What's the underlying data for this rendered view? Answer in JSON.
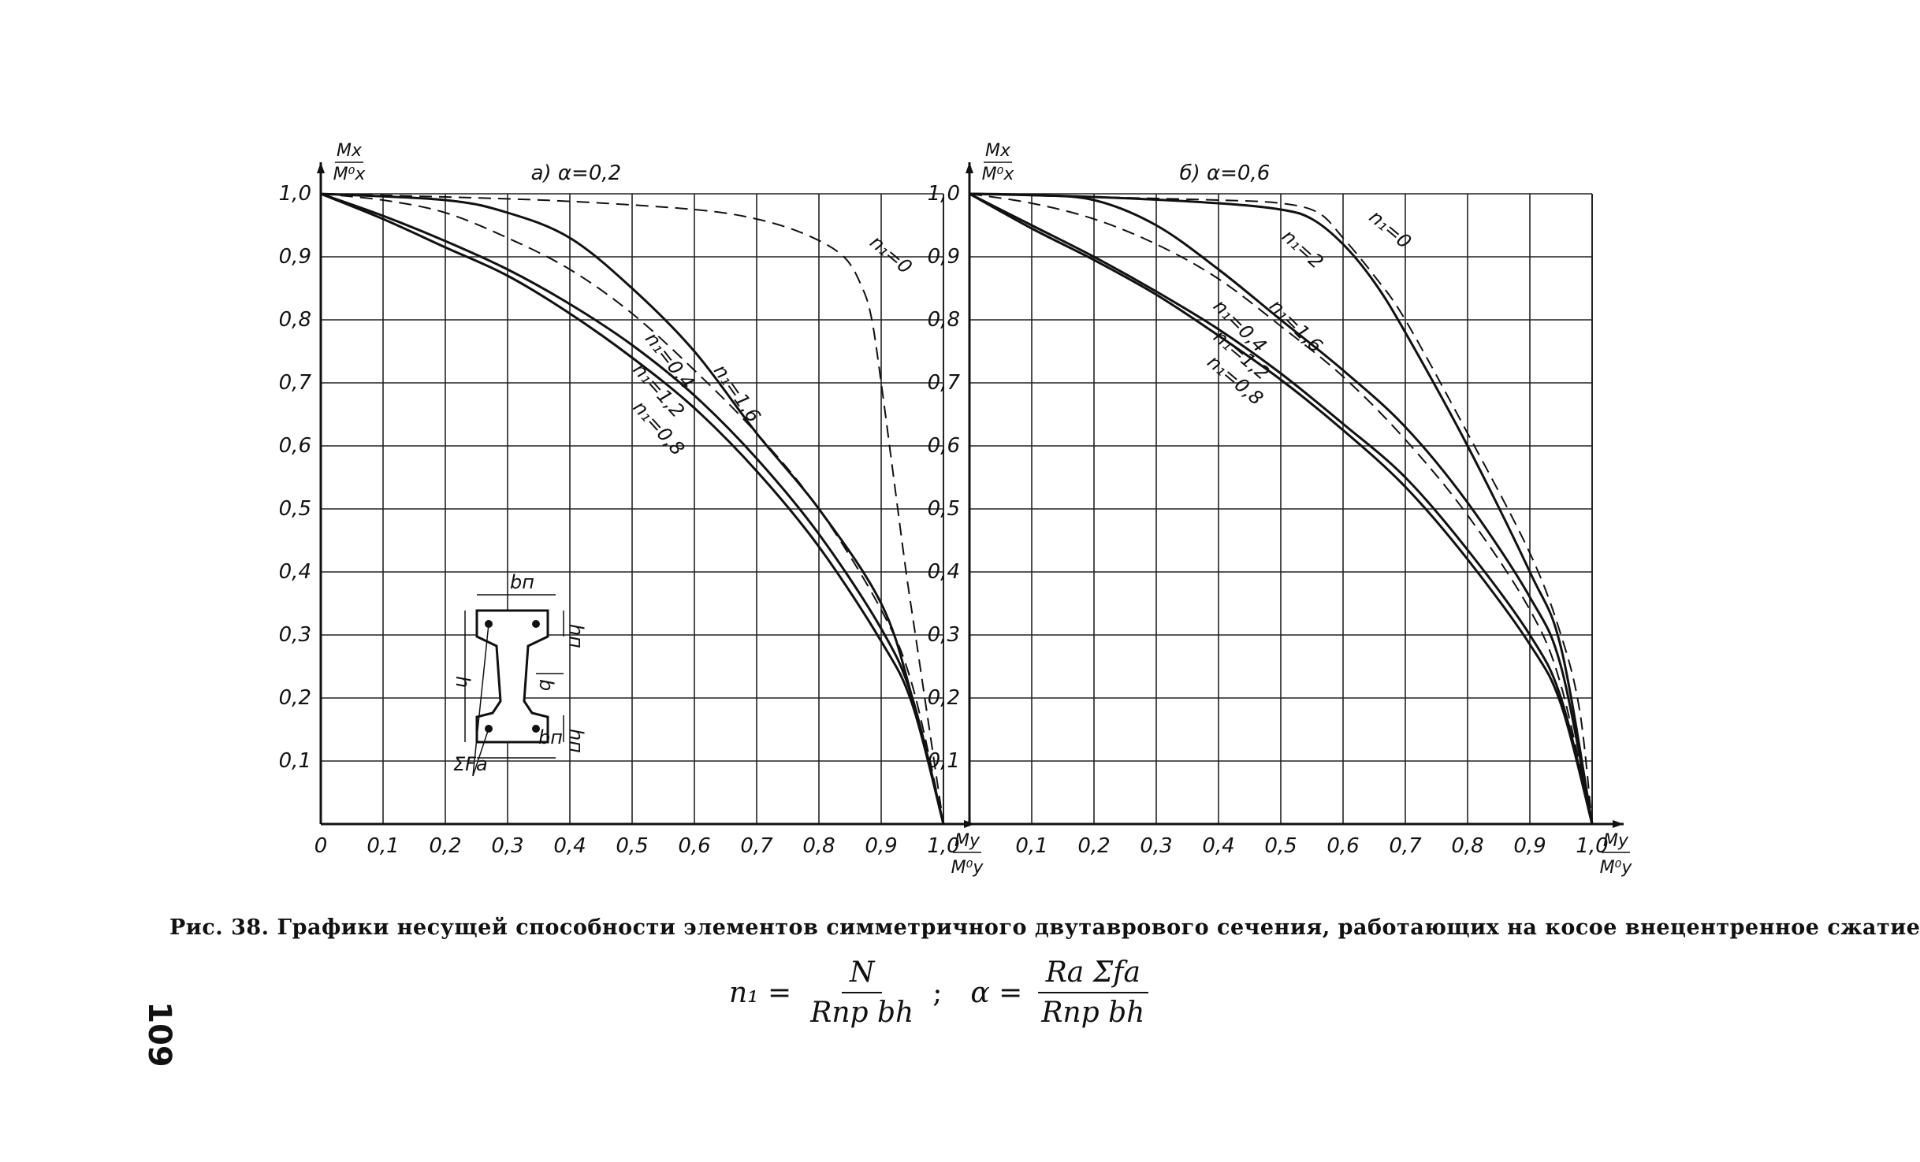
{
  "chart_data": [
    {
      "type": "line",
      "title": "а) α=0,2",
      "ylabel_num": "Mx",
      "ylabel_den": "M⁰x",
      "xlabel_num": "My",
      "xlabel_den": "M⁰y",
      "xlim": [
        0,
        1.0
      ],
      "ylim": [
        0,
        1.0
      ],
      "grid": true,
      "x_ticks": [
        "0",
        "0,1",
        "0,2",
        "0,3",
        "0,4",
        "0,5",
        "0,6",
        "0,7",
        "0,8",
        "0,9",
        "1,0"
      ],
      "y_ticks": [
        "0,1",
        "0,2",
        "0,3",
        "0,4",
        "0,5",
        "0,6",
        "0,7",
        "0,8",
        "0,9",
        "1,0"
      ],
      "series": [
        {
          "name": "n₁=0",
          "style": "dashed",
          "points": [
            [
              0,
              1
            ],
            [
              0.2,
              0.995
            ],
            [
              0.4,
              0.988
            ],
            [
              0.6,
              0.975
            ],
            [
              0.7,
              0.96
            ],
            [
              0.78,
              0.935
            ],
            [
              0.84,
              0.9
            ],
            [
              0.87,
              0.85
            ],
            [
              0.885,
              0.8
            ],
            [
              0.9,
              0.7
            ],
            [
              0.92,
              0.55
            ],
            [
              0.94,
              0.4
            ],
            [
              0.955,
              0.3
            ],
            [
              0.97,
              0.2
            ],
            [
              0.985,
              0.1
            ],
            [
              1.0,
              0
            ]
          ]
        },
        {
          "name": "n₁=1,6",
          "style": "solid",
          "points": [
            [
              0,
              1
            ],
            [
              0.2,
              0.99
            ],
            [
              0.3,
              0.97
            ],
            [
              0.4,
              0.93
            ],
            [
              0.5,
              0.85
            ],
            [
              0.6,
              0.75
            ],
            [
              0.7,
              0.62
            ],
            [
              0.8,
              0.5
            ],
            [
              0.9,
              0.35
            ],
            [
              0.95,
              0.2
            ],
            [
              1.0,
              0
            ]
          ]
        },
        {
          "name": "n₁=0,4",
          "style": "dashed",
          "points": [
            [
              0,
              1
            ],
            [
              0.1,
              0.99
            ],
            [
              0.2,
              0.97
            ],
            [
              0.3,
              0.93
            ],
            [
              0.4,
              0.88
            ],
            [
              0.5,
              0.81
            ],
            [
              0.6,
              0.72
            ],
            [
              0.7,
              0.62
            ],
            [
              0.8,
              0.5
            ],
            [
              0.9,
              0.34
            ],
            [
              0.95,
              0.22
            ],
            [
              1.0,
              0
            ]
          ]
        },
        {
          "name": "n₁=1,2",
          "style": "solid",
          "points": [
            [
              0,
              1
            ],
            [
              0.1,
              0.965
            ],
            [
              0.2,
              0.925
            ],
            [
              0.3,
              0.88
            ],
            [
              0.4,
              0.825
            ],
            [
              0.5,
              0.76
            ],
            [
              0.6,
              0.68
            ],
            [
              0.7,
              0.58
            ],
            [
              0.8,
              0.46
            ],
            [
              0.9,
              0.31
            ],
            [
              0.95,
              0.2
            ],
            [
              1.0,
              0
            ]
          ]
        },
        {
          "name": "n₁=0,8",
          "style": "solid",
          "points": [
            [
              0,
              1
            ],
            [
              0.1,
              0.96
            ],
            [
              0.2,
              0.915
            ],
            [
              0.3,
              0.87
            ],
            [
              0.4,
              0.81
            ],
            [
              0.5,
              0.74
            ],
            [
              0.6,
              0.66
            ],
            [
              0.7,
              0.56
            ],
            [
              0.8,
              0.44
            ],
            [
              0.9,
              0.29
            ],
            [
              0.95,
              0.19
            ],
            [
              1.0,
              0
            ]
          ]
        }
      ],
      "curve_labels": [
        "n₁=0",
        "n₁=1,6",
        "n₁=0,4",
        "n₁=1,2",
        "n₁=0,8"
      ]
    },
    {
      "type": "line",
      "title": "б) α=0,6",
      "ylabel_num": "Mx",
      "ylabel_den": "M⁰x",
      "xlabel_num": "My",
      "xlabel_den": "M⁰y",
      "xlim": [
        0,
        1.0
      ],
      "ylim": [
        0,
        1.0
      ],
      "grid": true,
      "x_ticks": [
        "",
        "0,1",
        "0,2",
        "0,3",
        "0,4",
        "0,5",
        "0,6",
        "0,7",
        "0,8",
        "0,9",
        "1,0"
      ],
      "y_ticks": [
        "0,1",
        "0,2",
        "0,3",
        "0,4",
        "0,5",
        "0,6",
        "0,7",
        "0,8",
        "0,9",
        "1,0"
      ],
      "series": [
        {
          "name": "n₁=0",
          "style": "dashed",
          "points": [
            [
              0,
              1
            ],
            [
              0.2,
              0.995
            ],
            [
              0.4,
              0.99
            ],
            [
              0.5,
              0.985
            ],
            [
              0.56,
              0.97
            ],
            [
              0.6,
              0.93
            ],
            [
              0.65,
              0.87
            ],
            [
              0.7,
              0.8
            ],
            [
              0.8,
              0.62
            ],
            [
              0.9,
              0.43
            ],
            [
              0.95,
              0.3
            ],
            [
              0.98,
              0.18
            ],
            [
              1.0,
              0
            ]
          ]
        },
        {
          "name": "n₁=2",
          "style": "solid",
          "points": [
            [
              0,
              1
            ],
            [
              0.2,
              0.995
            ],
            [
              0.4,
              0.985
            ],
            [
              0.5,
              0.975
            ],
            [
              0.55,
              0.96
            ],
            [
              0.6,
              0.92
            ],
            [
              0.65,
              0.86
            ],
            [
              0.7,
              0.78
            ],
            [
              0.8,
              0.6
            ],
            [
              0.9,
              0.4
            ],
            [
              0.95,
              0.28
            ],
            [
              1.0,
              0
            ]
          ]
        },
        {
          "name": "n₁=1,6",
          "style": "solid",
          "points": [
            [
              0,
              1
            ],
            [
              0.1,
              0.998
            ],
            [
              0.2,
              0.99
            ],
            [
              0.3,
              0.95
            ],
            [
              0.4,
              0.88
            ],
            [
              0.5,
              0.8
            ],
            [
              0.6,
              0.72
            ],
            [
              0.7,
              0.63
            ],
            [
              0.8,
              0.51
            ],
            [
              0.9,
              0.36
            ],
            [
              0.95,
              0.25
            ],
            [
              1.0,
              0
            ]
          ]
        },
        {
          "name": "n₁=0,4",
          "style": "dashed",
          "points": [
            [
              0,
              1
            ],
            [
              0.1,
              0.985
            ],
            [
              0.2,
              0.96
            ],
            [
              0.3,
              0.92
            ],
            [
              0.4,
              0.865
            ],
            [
              0.5,
              0.79
            ],
            [
              0.6,
              0.71
            ],
            [
              0.7,
              0.61
            ],
            [
              0.8,
              0.49
            ],
            [
              0.9,
              0.34
            ],
            [
              0.95,
              0.22
            ],
            [
              1.0,
              0
            ]
          ]
        },
        {
          "name": "n₁=1,2",
          "style": "solid",
          "points": [
            [
              0,
              1
            ],
            [
              0.1,
              0.95
            ],
            [
              0.2,
              0.9
            ],
            [
              0.3,
              0.845
            ],
            [
              0.4,
              0.785
            ],
            [
              0.5,
              0.715
            ],
            [
              0.6,
              0.635
            ],
            [
              0.7,
              0.55
            ],
            [
              0.8,
              0.435
            ],
            [
              0.9,
              0.3
            ],
            [
              0.95,
              0.2
            ],
            [
              1.0,
              0
            ]
          ]
        },
        {
          "name": "n₁=0,8",
          "style": "solid",
          "points": [
            [
              0,
              1
            ],
            [
              0.1,
              0.945
            ],
            [
              0.2,
              0.895
            ],
            [
              0.3,
              0.84
            ],
            [
              0.4,
              0.775
            ],
            [
              0.5,
              0.705
            ],
            [
              0.6,
              0.625
            ],
            [
              0.7,
              0.535
            ],
            [
              0.8,
              0.42
            ],
            [
              0.9,
              0.285
            ],
            [
              0.95,
              0.19
            ],
            [
              1.0,
              0
            ]
          ]
        }
      ],
      "curve_labels": [
        "n₁=0",
        "n₁=2",
        "n₁=1,6",
        "n₁=0,4",
        "n₁=1,2",
        "n₁=0,8"
      ]
    }
  ],
  "inset": {
    "labels": [
      "bп",
      "hп",
      "b",
      "h",
      "hп",
      "bп",
      "ΣFa"
    ]
  },
  "caption": "Рис. 38. Графики несущей способности элементов симметричного двутаврового сечения, работающих на косое внецентренное сжатие",
  "formula": {
    "n1_lhs": "n₁ =",
    "n1_num": "N",
    "n1_den": "Rпр bh",
    "separator": ";",
    "alpha_lhs": "α =",
    "alpha_num": "Rа Σfа",
    "alpha_den": "Rпр bh"
  },
  "page_number": "109"
}
